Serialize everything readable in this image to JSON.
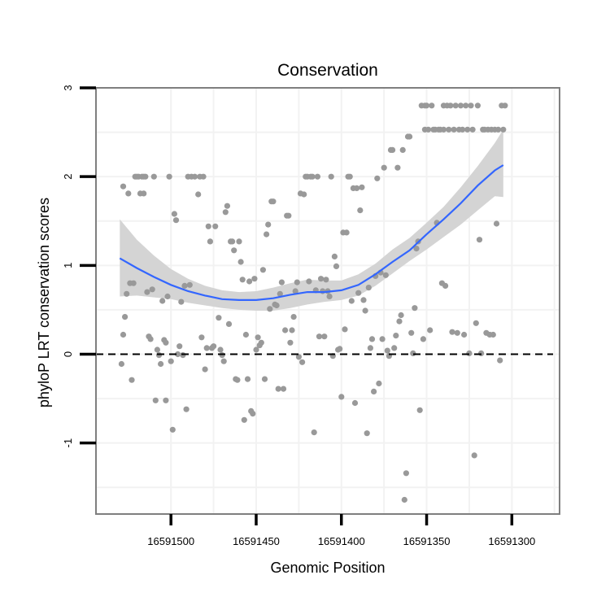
{
  "chart_data": {
    "type": "scatter",
    "title": "Conservation",
    "xlabel": "Genomic Position",
    "ylabel": "phyloP LRT conservation scores",
    "x_reversed": true,
    "xlim": [
      16591272,
      16591544
    ],
    "ylim": [
      -1.8,
      3.0
    ],
    "x_ticks": [
      16591500,
      16591450,
      16591400,
      16591350,
      16591300
    ],
    "x_tick_labels": [
      "16591500",
      "16591450",
      "16591400",
      "16591350",
      "16591300"
    ],
    "y_ticks": [
      -1,
      0,
      1,
      2,
      3
    ],
    "y_tick_labels": [
      "-1",
      "0",
      "1",
      "2",
      "3"
    ],
    "reference_line": {
      "y": 0,
      "style": "dashed"
    },
    "colors": {
      "points": "#999999",
      "smooth_line": "#3366ff",
      "ribbon": "#d4d4d4",
      "panel_border": "#7f7f7f",
      "grid": "#f2f2f2"
    },
    "points": [
      [
        16591529,
        -0.11
      ],
      [
        16591528,
        0.22
      ],
      [
        16591528,
        1.89
      ],
      [
        16591527,
        0.42
      ],
      [
        16591526,
        0.68
      ],
      [
        16591525,
        1.81
      ],
      [
        16591524,
        0.8
      ],
      [
        16591523,
        -0.29
      ],
      [
        16591522,
        0.8
      ],
      [
        16591521,
        2.0
      ],
      [
        16591520,
        2.0
      ],
      [
        16591519,
        2.0
      ],
      [
        16591518,
        1.81
      ],
      [
        16591517,
        2.0
      ],
      [
        16591516,
        1.81
      ],
      [
        16591516,
        2.0
      ],
      [
        16591515,
        2.0
      ],
      [
        16591514,
        0.7
      ],
      [
        16591513,
        0.2
      ],
      [
        16591512,
        0.17
      ],
      [
        16591511,
        0.73
      ],
      [
        16591510,
        2.0
      ],
      [
        16591509,
        -0.52
      ],
      [
        16591508,
        0.05
      ],
      [
        16591507,
        -0.01
      ],
      [
        16591506,
        -0.11
      ],
      [
        16591505,
        0.6
      ],
      [
        16591504,
        0.16
      ],
      [
        16591503,
        -0.52
      ],
      [
        16591503,
        0.13
      ],
      [
        16591502,
        0.65
      ],
      [
        16591501,
        2.0
      ],
      [
        16591500,
        -0.08
      ],
      [
        16591499,
        -0.85
      ],
      [
        16591498,
        1.58
      ],
      [
        16591497,
        1.51
      ],
      [
        16591496,
        0.0
      ],
      [
        16591495,
        0.09
      ],
      [
        16591494,
        0.59
      ],
      [
        16591493,
        -0.01
      ],
      [
        16591492,
        0.77
      ],
      [
        16591491,
        -0.62
      ],
      [
        16591490,
        2.0
      ],
      [
        16591489,
        0.78
      ],
      [
        16591488,
        2.0
      ],
      [
        16591486,
        2.0
      ],
      [
        16591484,
        1.8
      ],
      [
        16591483,
        2.0
      ],
      [
        16591482,
        0.19
      ],
      [
        16591481,
        2.0
      ],
      [
        16591480,
        -0.17
      ],
      [
        16591479,
        0.07
      ],
      [
        16591478,
        1.44
      ],
      [
        16591477,
        1.27
      ],
      [
        16591476,
        0.07
      ],
      [
        16591475,
        0.09
      ],
      [
        16591474,
        1.44
      ],
      [
        16591472,
        0.41
      ],
      [
        16591471,
        0.05
      ],
      [
        16591470,
        -0.01
      ],
      [
        16591469,
        -0.08
      ],
      [
        16591468,
        1.6
      ],
      [
        16591467,
        1.67
      ],
      [
        16591466,
        0.34
      ],
      [
        16591465,
        1.27
      ],
      [
        16591464,
        1.27
      ],
      [
        16591463,
        1.17
      ],
      [
        16591462,
        -0.28
      ],
      [
        16591461,
        -0.29
      ],
      [
        16591460,
        1.27
      ],
      [
        16591459,
        1.04
      ],
      [
        16591458,
        0.84
      ],
      [
        16591457,
        -0.74
      ],
      [
        16591456,
        0.22
      ],
      [
        16591455,
        -0.28
      ],
      [
        16591454,
        0.82
      ],
      [
        16591453,
        -0.64
      ],
      [
        16591452,
        -0.67
      ],
      [
        16591451,
        0.85
      ],
      [
        16591450,
        0.05
      ],
      [
        16591449,
        0.19
      ],
      [
        16591448,
        0.1
      ],
      [
        16591447,
        0.13
      ],
      [
        16591446,
        0.95
      ],
      [
        16591445,
        -0.28
      ],
      [
        16591444,
        1.35
      ],
      [
        16591443,
        1.46
      ],
      [
        16591442,
        0.51
      ],
      [
        16591441,
        1.72
      ],
      [
        16591440,
        1.72
      ],
      [
        16591439,
        0.56
      ],
      [
        16591438,
        0.55
      ],
      [
        16591437,
        -0.39
      ],
      [
        16591436,
        0.68
      ],
      [
        16591435,
        0.81
      ],
      [
        16591434,
        -0.39
      ],
      [
        16591433,
        0.27
      ],
      [
        16591432,
        1.56
      ],
      [
        16591431,
        1.56
      ],
      [
        16591430,
        0.13
      ],
      [
        16591429,
        0.27
      ],
      [
        16591428,
        0.42
      ],
      [
        16591427,
        0.71
      ],
      [
        16591426,
        0.81
      ],
      [
        16591425,
        -0.03
      ],
      [
        16591424,
        1.81
      ],
      [
        16591423,
        -0.09
      ],
      [
        16591422,
        1.8
      ],
      [
        16591421,
        2.0
      ],
      [
        16591420,
        2.0
      ],
      [
        16591419,
        0.82
      ],
      [
        16591418,
        2.0
      ],
      [
        16591417,
        2.0
      ],
      [
        16591416,
        -0.88
      ],
      [
        16591415,
        0.72
      ],
      [
        16591414,
        2.0
      ],
      [
        16591413,
        0.2
      ],
      [
        16591412,
        0.85
      ],
      [
        16591411,
        0.71
      ],
      [
        16591410,
        0.2
      ],
      [
        16591409,
        0.84
      ],
      [
        16591408,
        0.71
      ],
      [
        16591407,
        0.65
      ],
      [
        16591406,
        2.0
      ],
      [
        16591405,
        -0.02
      ],
      [
        16591404,
        1.1
      ],
      [
        16591403,
        0.99
      ],
      [
        16591402,
        0.05
      ],
      [
        16591401,
        0.06
      ],
      [
        16591400,
        -0.48
      ],
      [
        16591399,
        1.37
      ],
      [
        16591398,
        0.28
      ],
      [
        16591397,
        1.37
      ],
      [
        16591396,
        2.0
      ],
      [
        16591395,
        2.0
      ],
      [
        16591394,
        0.6
      ],
      [
        16591393,
        1.87
      ],
      [
        16591392,
        -0.55
      ],
      [
        16591391,
        1.87
      ],
      [
        16591390,
        0.69
      ],
      [
        16591389,
        1.62
      ],
      [
        16591388,
        1.88
      ],
      [
        16591387,
        0.61
      ],
      [
        16591386,
        0.49
      ],
      [
        16591385,
        -0.89
      ],
      [
        16591384,
        0.75
      ],
      [
        16591383,
        0.07
      ],
      [
        16591382,
        0.17
      ],
      [
        16591381,
        -0.42
      ],
      [
        16591380,
        0.88
      ],
      [
        16591379,
        1.98
      ],
      [
        16591378,
        -0.33
      ],
      [
        16591377,
        0.92
      ],
      [
        16591376,
        0.17
      ],
      [
        16591375,
        2.1
      ],
      [
        16591374,
        0.89
      ],
      [
        16591373,
        0.04
      ],
      [
        16591372,
        -0.02
      ],
      [
        16591371,
        2.3
      ],
      [
        16591370,
        2.3
      ],
      [
        16591369,
        0.07
      ],
      [
        16591368,
        0.21
      ],
      [
        16591367,
        2.1
      ],
      [
        16591366,
        0.37
      ],
      [
        16591365,
        0.44
      ],
      [
        16591364,
        2.3
      ],
      [
        16591363,
        -1.64
      ],
      [
        16591362,
        -1.34
      ],
      [
        16591361,
        2.45
      ],
      [
        16591360,
        2.45
      ],
      [
        16591359,
        0.24
      ],
      [
        16591358,
        0.01
      ],
      [
        16591357,
        0.52
      ],
      [
        16591356,
        1.19
      ],
      [
        16591355,
        1.27
      ],
      [
        16591354,
        -0.63
      ],
      [
        16591353,
        2.8
      ],
      [
        16591352,
        0.17
      ],
      [
        16591351,
        2.8
      ],
      [
        16591351,
        2.53
      ],
      [
        16591350,
        2.8
      ],
      [
        16591349,
        2.53
      ],
      [
        16591348,
        0.27
      ],
      [
        16591347,
        2.8
      ],
      [
        16591346,
        2.53
      ],
      [
        16591345,
        2.53
      ],
      [
        16591344,
        1.48
      ],
      [
        16591343,
        2.53
      ],
      [
        16591342,
        2.53
      ],
      [
        16591341,
        0.8
      ],
      [
        16591340,
        2.8
      ],
      [
        16591340,
        2.53
      ],
      [
        16591339,
        0.77
      ],
      [
        16591338,
        2.8
      ],
      [
        16591337,
        2.53
      ],
      [
        16591336,
        2.8
      ],
      [
        16591335,
        0.25
      ],
      [
        16591334,
        2.53
      ],
      [
        16591333,
        2.8
      ],
      [
        16591332,
        0.24
      ],
      [
        16591331,
        2.53
      ],
      [
        16591330,
        2.8
      ],
      [
        16591329,
        2.53
      ],
      [
        16591328,
        0.22
      ],
      [
        16591327,
        2.8
      ],
      [
        16591326,
        2.53
      ],
      [
        16591325,
        0.01
      ],
      [
        16591324,
        2.8
      ],
      [
        16591323,
        2.53
      ],
      [
        16591322,
        -1.14
      ],
      [
        16591321,
        0.35
      ],
      [
        16591320,
        2.8
      ],
      [
        16591319,
        1.29
      ],
      [
        16591318,
        0.01
      ],
      [
        16591317,
        2.53
      ],
      [
        16591316,
        2.53
      ],
      [
        16591315,
        0.24
      ],
      [
        16591314,
        2.53
      ],
      [
        16591313,
        0.22
      ],
      [
        16591312,
        2.53
      ],
      [
        16591311,
        0.22
      ],
      [
        16591310,
        2.53
      ],
      [
        16591309,
        1.47
      ],
      [
        16591308,
        2.53
      ],
      [
        16591307,
        -0.07
      ],
      [
        16591306,
        2.8
      ],
      [
        16591305,
        2.53
      ],
      [
        16591304,
        2.8
      ]
    ],
    "smooth_x": [
      16591530,
      16591520,
      16591510,
      16591500,
      16591490,
      16591480,
      16591470,
      16591460,
      16591450,
      16591440,
      16591430,
      16591420,
      16591410,
      16591400,
      16591390,
      16591380,
      16591370,
      16591360,
      16591350,
      16591340,
      16591330,
      16591320,
      16591310,
      16591305
    ],
    "smooth_y": [
      1.08,
      0.97,
      0.87,
      0.78,
      0.71,
      0.66,
      0.62,
      0.61,
      0.61,
      0.63,
      0.67,
      0.7,
      0.7,
      0.72,
      0.78,
      0.9,
      1.04,
      1.17,
      1.35,
      1.52,
      1.7,
      1.9,
      2.07,
      2.13
    ],
    "ribbon_low": [
      0.65,
      0.66,
      0.64,
      0.62,
      0.58,
      0.55,
      0.52,
      0.5,
      0.49,
      0.49,
      0.52,
      0.56,
      0.59,
      0.61,
      0.66,
      0.77,
      0.91,
      1.05,
      1.18,
      1.32,
      1.46,
      1.62,
      1.78,
      1.77
    ],
    "ribbon_high": [
      1.52,
      1.29,
      1.11,
      0.96,
      0.85,
      0.77,
      0.72,
      0.7,
      0.71,
      0.75,
      0.8,
      0.84,
      0.83,
      0.83,
      0.9,
      1.02,
      1.18,
      1.31,
      1.48,
      1.66,
      1.88,
      2.12,
      2.38,
      2.53
    ]
  }
}
